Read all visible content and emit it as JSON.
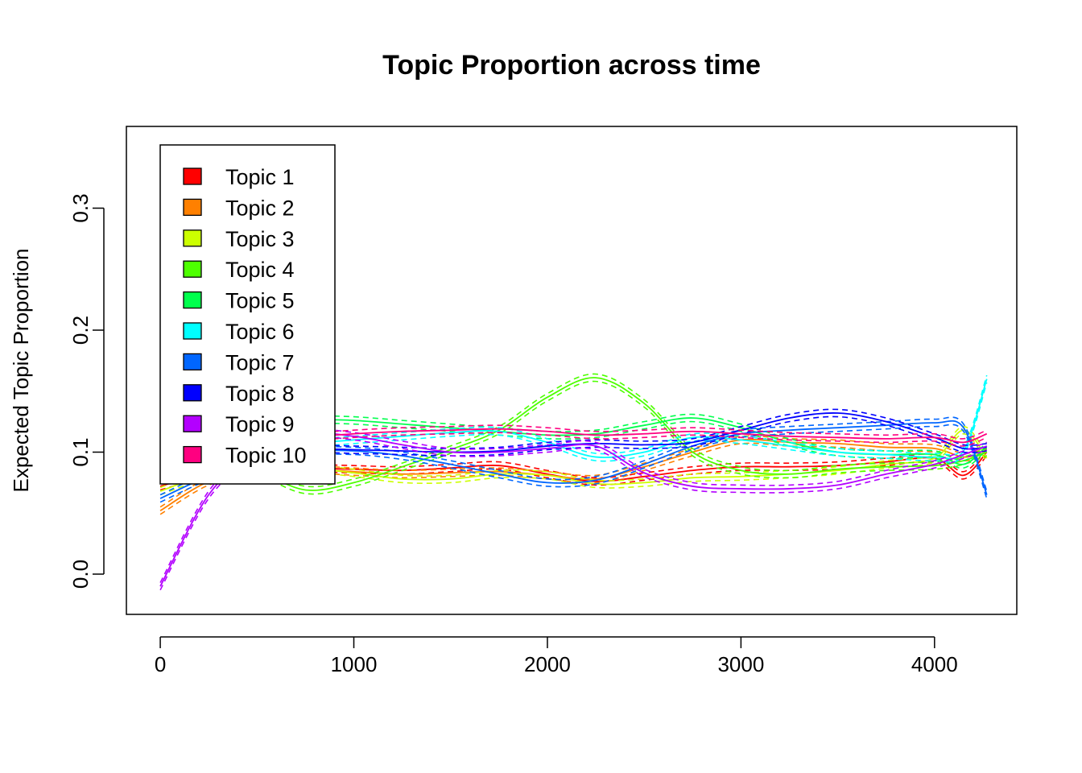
{
  "chart_data": {
    "type": "line",
    "title": "Topic Proportion across time",
    "xlabel": "",
    "ylabel": "Expected Topic Proportion",
    "xlim": [
      -175,
      4425
    ],
    "ylim": [
      -0.033,
      0.367
    ],
    "x_ticks": [
      0,
      1000,
      2000,
      3000,
      4000
    ],
    "y_ticks": [
      0.0,
      0.1,
      0.2,
      0.3
    ],
    "x_tick_labels": [
      "0",
      "1000",
      "2000",
      "3000",
      "4000"
    ],
    "y_tick_labels": [
      "0.0",
      "0.1",
      "0.2",
      "0.3"
    ],
    "legend_position": "top-left",
    "ci_style": "dashed",
    "ci_halfwidth": 0.003,
    "x": [
      0,
      250,
      500,
      750,
      1000,
      1250,
      1500,
      1750,
      2000,
      2250,
      2500,
      2750,
      3000,
      3250,
      3500,
      3750,
      4000,
      4150,
      4270
    ],
    "series": [
      {
        "name": "Topic 1",
        "color": "#FF0000",
        "values": [
          0.072,
          0.083,
          0.088,
          0.087,
          0.086,
          0.085,
          0.087,
          0.089,
          0.082,
          0.076,
          0.08,
          0.085,
          0.088,
          0.088,
          0.089,
          0.092,
          0.095,
          0.081,
          0.1
        ]
      },
      {
        "name": "Topic 2",
        "color": "#FF8000",
        "values": [
          0.052,
          0.076,
          0.085,
          0.086,
          0.084,
          0.082,
          0.083,
          0.084,
          0.081,
          0.078,
          0.088,
          0.1,
          0.11,
          0.108,
          0.107,
          0.104,
          0.103,
          0.096,
          0.1
        ]
      },
      {
        "name": "Topic 3",
        "color": "#CCFF00",
        "values": [
          0.068,
          0.082,
          0.088,
          0.087,
          0.083,
          0.078,
          0.078,
          0.082,
          0.081,
          0.074,
          0.075,
          0.079,
          0.08,
          0.082,
          0.085,
          0.09,
          0.095,
          0.118,
          0.095
        ]
      },
      {
        "name": "Topic 4",
        "color": "#4DFF00",
        "values": [
          0.1,
          0.098,
          0.085,
          0.069,
          0.075,
          0.088,
          0.102,
          0.118,
          0.145,
          0.161,
          0.14,
          0.1,
          0.085,
          0.082,
          0.086,
          0.088,
          0.089,
          0.093,
          0.1
        ]
      },
      {
        "name": "Topic 5",
        "color": "#00FF4D",
        "values": [
          0.125,
          0.128,
          0.128,
          0.127,
          0.126,
          0.123,
          0.12,
          0.117,
          0.114,
          0.115,
          0.122,
          0.128,
          0.12,
          0.108,
          0.1,
          0.098,
          0.098,
          0.09,
          0.105
        ]
      },
      {
        "name": "Topic 6",
        "color": "#00FFFF",
        "values": [
          0.1,
          0.102,
          0.104,
          0.107,
          0.11,
          0.113,
          0.116,
          0.117,
          0.108,
          0.096,
          0.1,
          0.112,
          0.11,
          0.105,
          0.1,
          0.098,
          0.096,
          0.101,
          0.16
        ]
      },
      {
        "name": "Topic 7",
        "color": "#0066FF",
        "values": [
          0.062,
          0.08,
          0.09,
          0.1,
          0.101,
          0.097,
          0.09,
          0.082,
          0.075,
          0.077,
          0.09,
          0.105,
          0.115,
          0.118,
          0.12,
          0.122,
          0.124,
          0.12,
          0.065
        ]
      },
      {
        "name": "Topic 8",
        "color": "#0000FF",
        "values": [
          0.1,
          0.102,
          0.103,
          0.103,
          0.102,
          0.101,
          0.1,
          0.101,
          0.105,
          0.107,
          0.106,
          0.108,
          0.118,
          0.128,
          0.132,
          0.125,
          0.112,
          0.103,
          0.104
        ]
      },
      {
        "name": "Topic 9",
        "color": "#B300FF",
        "values": [
          -0.01,
          0.065,
          0.1,
          0.115,
          0.113,
          0.106,
          0.1,
          0.1,
          0.103,
          0.105,
          0.083,
          0.072,
          0.07,
          0.07,
          0.073,
          0.082,
          0.09,
          0.098,
          0.105
        ]
      },
      {
        "name": "Topic 10",
        "color": "#FF0080",
        "values": [
          0.098,
          0.104,
          0.108,
          0.112,
          0.115,
          0.117,
          0.118,
          0.119,
          0.117,
          0.114,
          0.115,
          0.117,
          0.115,
          0.113,
          0.112,
          0.111,
          0.112,
          0.108,
          0.115
        ]
      }
    ]
  }
}
